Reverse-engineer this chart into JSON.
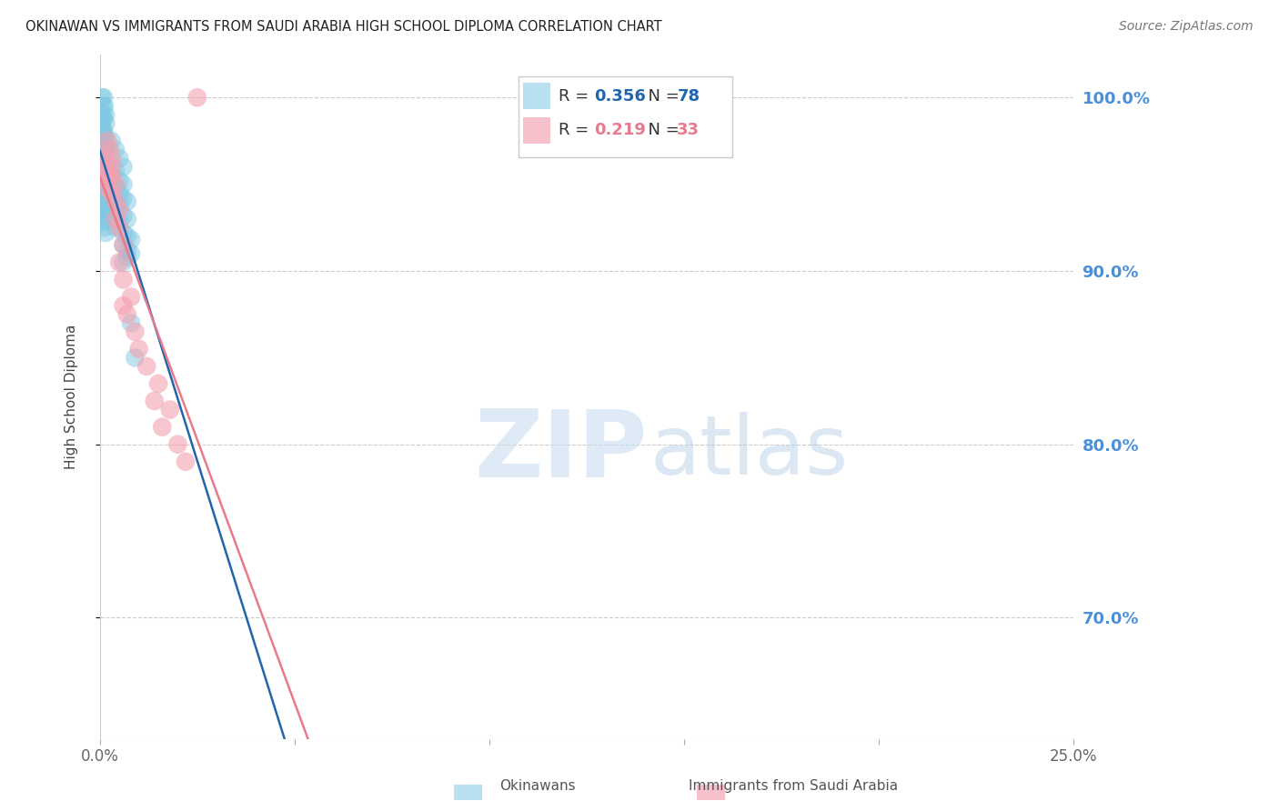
{
  "title": "OKINAWAN VS IMMIGRANTS FROM SAUDI ARABIA HIGH SCHOOL DIPLOMA CORRELATION CHART",
  "source": "Source: ZipAtlas.com",
  "ylabel": "High School Diploma",
  "x_min": 0.0,
  "x_max": 0.25,
  "y_min": 0.63,
  "y_max": 1.025,
  "watermark_zip": "ZIP",
  "watermark_atlas": "atlas",
  "legend_label1": "Okinawans",
  "legend_label2": "Immigrants from Saudi Arabia",
  "okinawan_color": "#7ec8e3",
  "saudi_color": "#f4a0b0",
  "okinawan_line_color": "#2166ac",
  "saudi_line_color": "#e87a8b",
  "grid_color": "#cccccc",
  "right_axis_color": "#4a90d9",
  "okinawan_x": [
    0.0005,
    0.001,
    0.0008,
    0.0012,
    0.0015,
    0.0008,
    0.001,
    0.0015,
    0.0005,
    0.0008,
    0.001,
    0.0012,
    0.0006,
    0.0009,
    0.0015,
    0.001,
    0.0008,
    0.0012,
    0.0005,
    0.0015,
    0.001,
    0.0008,
    0.0012,
    0.0006,
    0.0015,
    0.001,
    0.0008,
    0.0005,
    0.0012,
    0.0015,
    0.0008,
    0.001,
    0.0012,
    0.0006,
    0.0015,
    0.001,
    0.0008,
    0.0005,
    0.0012,
    0.0015,
    0.0008,
    0.001,
    0.0012,
    0.0006,
    0.0015,
    0.001,
    0.0008,
    0.0005,
    0.0012,
    0.0015,
    0.003,
    0.004,
    0.005,
    0.006,
    0.004,
    0.003,
    0.005,
    0.006,
    0.004,
    0.005,
    0.006,
    0.007,
    0.005,
    0.004,
    0.006,
    0.007,
    0.005,
    0.004,
    0.006,
    0.007,
    0.008,
    0.006,
    0.007,
    0.008,
    0.007,
    0.006,
    0.008,
    0.009
  ],
  "okinawan_y": [
    1.0,
    1.0,
    0.995,
    0.995,
    0.99,
    0.99,
    0.988,
    0.985,
    0.985,
    0.982,
    0.98,
    0.978,
    0.978,
    0.975,
    0.975,
    0.972,
    0.972,
    0.97,
    0.97,
    0.968,
    0.965,
    0.965,
    0.963,
    0.962,
    0.96,
    0.958,
    0.958,
    0.956,
    0.955,
    0.953,
    0.952,
    0.95,
    0.948,
    0.947,
    0.946,
    0.945,
    0.944,
    0.943,
    0.942,
    0.94,
    0.938,
    0.937,
    0.936,
    0.935,
    0.934,
    0.932,
    0.93,
    0.928,
    0.925,
    0.922,
    0.975,
    0.97,
    0.965,
    0.96,
    0.958,
    0.955,
    0.952,
    0.95,
    0.948,
    0.945,
    0.942,
    0.94,
    0.938,
    0.935,
    0.932,
    0.93,
    0.928,
    0.925,
    0.922,
    0.92,
    0.918,
    0.915,
    0.912,
    0.91,
    0.908,
    0.905,
    0.87,
    0.85
  ],
  "saudi_x": [
    0.001,
    0.0015,
    0.002,
    0.0015,
    0.002,
    0.0025,
    0.002,
    0.003,
    0.003,
    0.002,
    0.003,
    0.004,
    0.003,
    0.004,
    0.005,
    0.004,
    0.005,
    0.006,
    0.005,
    0.006,
    0.008,
    0.007,
    0.009,
    0.01,
    0.012,
    0.015,
    0.018,
    0.014,
    0.016,
    0.02,
    0.022,
    0.025,
    0.006
  ],
  "saudi_y": [
    0.965,
    0.96,
    0.975,
    0.958,
    0.955,
    0.97,
    0.952,
    0.965,
    0.96,
    0.948,
    0.955,
    0.95,
    0.945,
    0.94,
    0.935,
    0.93,
    0.925,
    0.915,
    0.905,
    0.895,
    0.885,
    0.875,
    0.865,
    0.855,
    0.845,
    0.835,
    0.82,
    0.825,
    0.81,
    0.8,
    0.79,
    1.0,
    0.88
  ]
}
